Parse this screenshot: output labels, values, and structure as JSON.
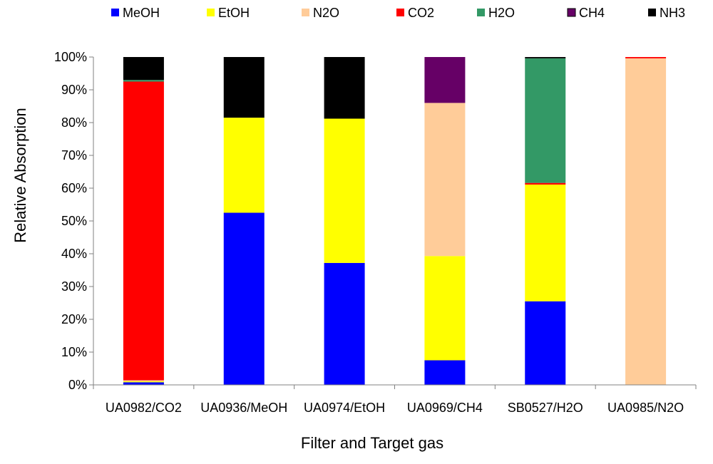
{
  "chart_data": {
    "type": "bar",
    "stacked": true,
    "normalized": true,
    "title": "",
    "xlabel": "Filter and Target gas",
    "ylabel": "Relative Absorption",
    "ylim": [
      0,
      100
    ],
    "ytick_values": [
      0,
      10,
      20,
      30,
      40,
      50,
      60,
      70,
      80,
      90,
      100
    ],
    "ytick_labels": [
      "0%",
      "10%",
      "20%",
      "30%",
      "40%",
      "50%",
      "60%",
      "70%",
      "80%",
      "90%",
      "100%"
    ],
    "legend_position": "top",
    "grid": false,
    "categories": [
      "UA0982/CO2",
      "UA0936/MeOH",
      "UA0974/EtOH",
      "UA0969/CH4",
      "SB0527/H2O",
      "UA0985/N2O"
    ],
    "series": [
      {
        "name": "MeOH",
        "color": "#0000FF",
        "values": [
          0.8,
          52.5,
          37.2,
          7.5,
          25.5,
          0
        ]
      },
      {
        "name": "EtOH",
        "color": "#FFFF00",
        "values": [
          0.3,
          29.0,
          44.0,
          31.8,
          35.6,
          0
        ]
      },
      {
        "name": "N2O",
        "color": "#FFCC99",
        "values": [
          0.3,
          0,
          0,
          46.7,
          0,
          99.6
        ]
      },
      {
        "name": "CO2",
        "color": "#FF0000",
        "values": [
          91.1,
          0,
          0,
          0,
          0.5,
          0.4
        ]
      },
      {
        "name": "H2O",
        "color": "#339966",
        "values": [
          0.5,
          0,
          0,
          0,
          38.0,
          0
        ]
      },
      {
        "name": "CH4",
        "color": "#660066",
        "values": [
          0,
          0,
          0,
          14.0,
          0,
          0
        ]
      },
      {
        "name": "NH3",
        "color": "#000000",
        "values": [
          7.0,
          18.5,
          18.8,
          0,
          0.4,
          0
        ]
      }
    ]
  }
}
